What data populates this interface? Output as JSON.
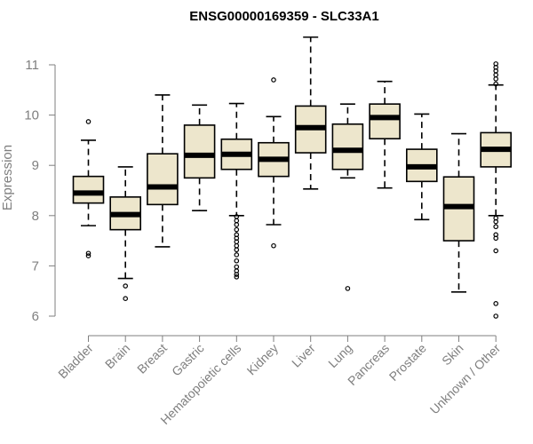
{
  "chart_data": {
    "type": "boxplot",
    "title": "ENSG00000169359 - SLC33A1",
    "xlabel": "",
    "ylabel": "Expression",
    "ylim": [
      5.95,
      11.5
    ],
    "yticks": [
      6,
      7,
      8,
      9,
      10,
      11
    ],
    "grid": false,
    "colors": {
      "box_fill": "#ede6cc",
      "stroke": "#000000",
      "axis": "#7f7f7f"
    },
    "categories": [
      "Bladder",
      "Brain",
      "Breast",
      "Gastric",
      "Hematopoietic cells",
      "Kidney",
      "Liver",
      "Lung",
      "Pancreas",
      "Prostate",
      "Skin",
      "Unknown / Other"
    ],
    "boxes": [
      {
        "name": "Bladder",
        "whisker_low": 7.8,
        "q1": 8.25,
        "median": 8.45,
        "q3": 8.78,
        "whisker_high": 9.5,
        "outliers": [
          9.87,
          7.25,
          7.2
        ]
      },
      {
        "name": "Brain",
        "whisker_low": 6.75,
        "q1": 7.72,
        "median": 8.02,
        "q3": 8.37,
        "whisker_high": 8.97,
        "outliers": [
          6.6,
          6.35
        ]
      },
      {
        "name": "Breast",
        "whisker_low": 7.38,
        "q1": 8.22,
        "median": 8.57,
        "q3": 9.23,
        "whisker_high": 10.4,
        "outliers": []
      },
      {
        "name": "Gastric",
        "whisker_low": 8.1,
        "q1": 8.75,
        "median": 9.2,
        "q3": 9.8,
        "whisker_high": 10.2,
        "outliers": []
      },
      {
        "name": "Hematopoietic cells",
        "whisker_low": 8.0,
        "q1": 8.92,
        "median": 9.22,
        "q3": 9.52,
        "whisker_high": 10.23,
        "outliers": [
          7.98,
          7.9,
          7.82,
          7.72,
          7.62,
          7.55,
          7.48,
          7.4,
          7.32,
          7.22,
          7.1,
          6.98,
          6.9,
          6.83,
          6.78
        ]
      },
      {
        "name": "Kidney",
        "whisker_low": 7.82,
        "q1": 8.78,
        "median": 9.12,
        "q3": 9.45,
        "whisker_high": 9.97,
        "outliers": [
          10.7,
          7.4
        ]
      },
      {
        "name": "Liver",
        "whisker_low": 8.53,
        "q1": 9.25,
        "median": 9.75,
        "q3": 10.18,
        "whisker_high": 11.55,
        "outliers": []
      },
      {
        "name": "Lung",
        "whisker_low": 8.75,
        "q1": 8.92,
        "median": 9.3,
        "q3": 9.82,
        "whisker_high": 10.22,
        "outliers": [
          6.55
        ]
      },
      {
        "name": "Pancreas",
        "whisker_low": 8.55,
        "q1": 9.53,
        "median": 9.95,
        "q3": 10.22,
        "whisker_high": 10.67,
        "outliers": []
      },
      {
        "name": "Prostate",
        "whisker_low": 7.92,
        "q1": 8.68,
        "median": 8.97,
        "q3": 9.32,
        "whisker_high": 10.02,
        "outliers": []
      },
      {
        "name": "Skin",
        "whisker_low": 6.48,
        "q1": 7.5,
        "median": 8.18,
        "q3": 8.77,
        "whisker_high": 9.63,
        "outliers": []
      },
      {
        "name": "Unknown / Other",
        "whisker_low": 8.0,
        "q1": 8.97,
        "median": 9.32,
        "q3": 9.65,
        "whisker_high": 10.6,
        "outliers": [
          11.02,
          10.95,
          10.88,
          10.8,
          10.72,
          10.62,
          7.95,
          7.88,
          7.78,
          7.62,
          7.55,
          7.3,
          6.25,
          6.0
        ]
      }
    ]
  }
}
